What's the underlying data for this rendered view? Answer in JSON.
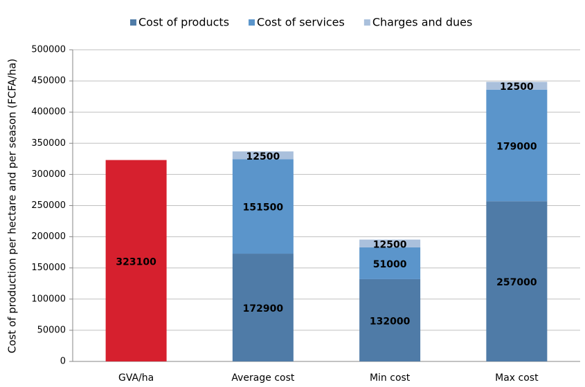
{
  "chart_data": {
    "type": "stacked-bar",
    "y_label": "Cost of production per hectare and per season (FCFA/ha)",
    "categories": [
      "GVA/ha",
      "Average cost",
      "Min cost",
      "Max cost"
    ],
    "series": [
      {
        "name": "Cost of products",
        "color": "#4f7ba7",
        "values": [
          null,
          172900,
          132000,
          257000
        ]
      },
      {
        "name": "Cost of services",
        "color": "#5b95cb",
        "values": [
          null,
          151500,
          51000,
          179000
        ]
      },
      {
        "name": "Charges and dues",
        "color": "#aac0dc",
        "values": [
          null,
          12500,
          12500,
          12500
        ]
      },
      {
        "color": "#d6202e",
        "values": [
          323100,
          null,
          null,
          null
        ]
      }
    ],
    "ylim": [
      0,
      500000
    ],
    "yticks": [
      0,
      50000,
      100000,
      150000,
      200000,
      250000,
      300000,
      350000,
      400000,
      450000,
      500000
    ],
    "grid": true
  }
}
